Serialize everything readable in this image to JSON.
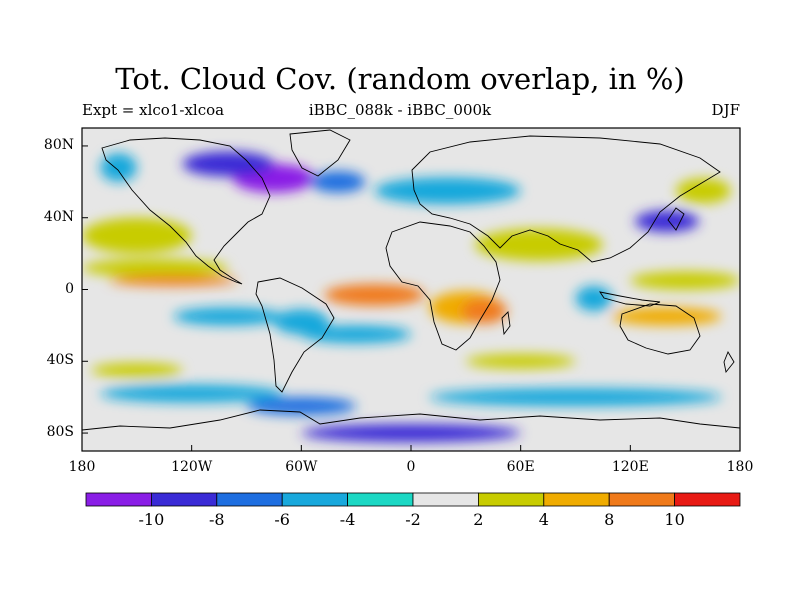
{
  "title": "Tot. Cloud Cov. (random overlap, in %)",
  "left_label": "Expt = xlco1-xlcoa",
  "center_label": "iBBC_088k - iBBC_000k",
  "right_label": "DJF",
  "y_ticks": [
    {
      "label": "80N",
      "lat": 80
    },
    {
      "label": "40N",
      "lat": 40
    },
    {
      "label": "0",
      "lat": 0
    },
    {
      "label": "40S",
      "lat": -40
    },
    {
      "label": "80S",
      "lat": -80
    }
  ],
  "x_ticks": [
    {
      "label": "180",
      "lon": -180
    },
    {
      "label": "120W",
      "lon": -120
    },
    {
      "label": "60W",
      "lon": -60
    },
    {
      "label": "0",
      "lon": 0
    },
    {
      "label": "60E",
      "lon": 60
    },
    {
      "label": "120E",
      "lon": 120
    },
    {
      "label": "180",
      "lon": 180
    }
  ],
  "colorbar": {
    "colors": [
      "#8a1ee6",
      "#3a2bd6",
      "#1e6ee0",
      "#18a8dc",
      "#1cd8c4",
      "#e6e6e6",
      "#c8cc00",
      "#f0ac00",
      "#f07a1a",
      "#e81a14"
    ],
    "labels": [
      "-10",
      "-8",
      "-6",
      "-4",
      "-2",
      "2",
      "4",
      "8",
      "10"
    ]
  },
  "chart_data": {
    "type": "heatmap",
    "title": "Tot. Cloud Cov. (random overlap, in %)",
    "units": "%",
    "experiment": "xlco1-xlcoa",
    "comparison": "iBBC_088k - iBBC_000k",
    "season": "DJF",
    "x_range": [
      -180,
      180
    ],
    "y_range": [
      -90,
      90
    ],
    "levels": [
      -10,
      -8,
      -6,
      -4,
      -2,
      2,
      4,
      8,
      10
    ],
    "anomalies": [
      {
        "lon": -75,
        "lat": 62,
        "w": 45,
        "h": 16,
        "level": -10
      },
      {
        "lon": -100,
        "lat": 70,
        "w": 50,
        "h": 14,
        "level": -8
      },
      {
        "lon": -40,
        "lat": 60,
        "w": 30,
        "h": 12,
        "level": -6
      },
      {
        "lon": -160,
        "lat": 68,
        "w": 20,
        "h": 16,
        "level": -4
      },
      {
        "lon": 20,
        "lat": 55,
        "w": 80,
        "h": 15,
        "level": -4
      },
      {
        "lon": 140,
        "lat": 38,
        "w": 35,
        "h": 12,
        "level": -8
      },
      {
        "lon": -150,
        "lat": 30,
        "w": 60,
        "h": 20,
        "level": 4
      },
      {
        "lon": 70,
        "lat": 25,
        "w": 70,
        "h": 18,
        "level": 4
      },
      {
        "lon": 160,
        "lat": 55,
        "w": 30,
        "h": 14,
        "level": 4
      },
      {
        "lon": -140,
        "lat": 12,
        "w": 80,
        "h": 10,
        "level": 4
      },
      {
        "lon": -130,
        "lat": 5,
        "w": 70,
        "h": 6,
        "level": 10
      },
      {
        "lon": -20,
        "lat": -3,
        "w": 55,
        "h": 12,
        "level": 10
      },
      {
        "lon": 30,
        "lat": -10,
        "w": 40,
        "h": 18,
        "level": 8
      },
      {
        "lon": 40,
        "lat": -12,
        "w": 25,
        "h": 14,
        "level": 10
      },
      {
        "lon": 100,
        "lat": -5,
        "w": 20,
        "h": 14,
        "level": -4
      },
      {
        "lon": 140,
        "lat": -15,
        "w": 60,
        "h": 10,
        "level": 8
      },
      {
        "lon": 150,
        "lat": 5,
        "w": 60,
        "h": 10,
        "level": 4
      },
      {
        "lon": -100,
        "lat": -15,
        "w": 60,
        "h": 10,
        "level": -4
      },
      {
        "lon": -60,
        "lat": -18,
        "w": 30,
        "h": 14,
        "level": -4
      },
      {
        "lon": -30,
        "lat": -25,
        "w": 60,
        "h": 10,
        "level": -4
      },
      {
        "lon": -120,
        "lat": -58,
        "w": 100,
        "h": 10,
        "level": -4
      },
      {
        "lon": -60,
        "lat": -65,
        "w": 60,
        "h": 10,
        "level": -6
      },
      {
        "lon": 90,
        "lat": -60,
        "w": 160,
        "h": 10,
        "level": -4
      },
      {
        "lon": -150,
        "lat": -45,
        "w": 50,
        "h": 8,
        "level": 4
      },
      {
        "lon": 60,
        "lat": -40,
        "w": 60,
        "h": 8,
        "level": 4
      },
      {
        "lon": 0,
        "lat": -80,
        "w": 120,
        "h": 10,
        "level": -8
      }
    ]
  }
}
